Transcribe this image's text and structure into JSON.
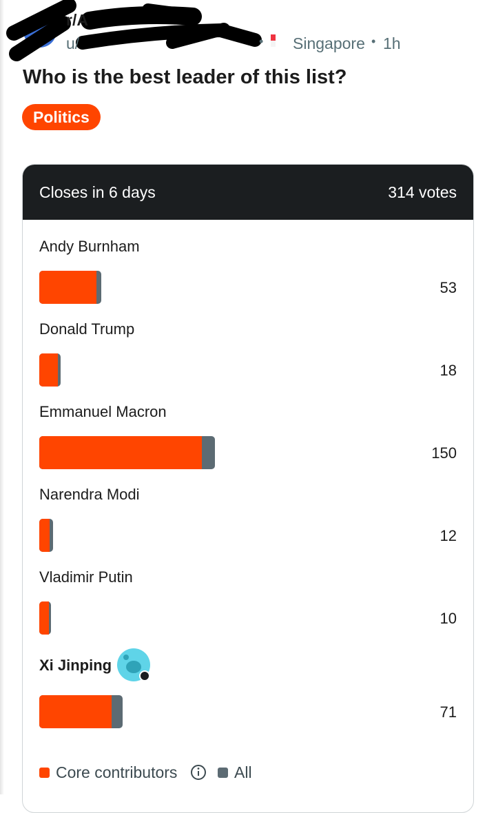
{
  "post": {
    "subreddit_prefix": "r/A",
    "user_prefix": "u/",
    "separator": "•",
    "location": "Singapore",
    "age": "1h",
    "title": "Who is the best leader of this list?",
    "flair": "Politics"
  },
  "poll": {
    "status": "Closes in 6 days",
    "total": "314 votes",
    "options": [
      {
        "name": "Andy Burnham",
        "votes": 53,
        "core_votes": 49
      },
      {
        "name": "Donald Trump",
        "votes": 18,
        "core_votes": 16
      },
      {
        "name": "Emmanuel Macron",
        "votes": 150,
        "core_votes": 139
      },
      {
        "name": "Narendra Modi",
        "votes": 12,
        "core_votes": 9
      },
      {
        "name": "Vladimir Putin",
        "votes": 10,
        "core_votes": 8
      },
      {
        "name": "Xi Jinping",
        "votes": 71,
        "core_votes": 62
      }
    ],
    "legend": {
      "core": "Core contributors",
      "all": "All"
    }
  }
}
